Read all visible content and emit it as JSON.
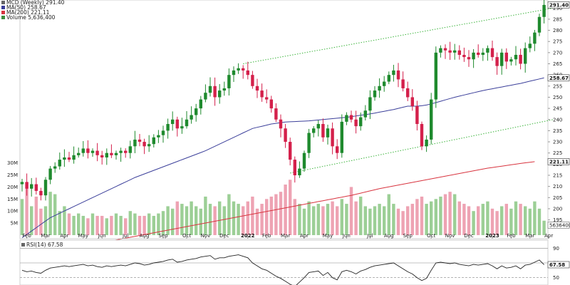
{
  "chart_data": {
    "type": "candlestick",
    "legend": {
      "title": "MCD (Weekly) 291.40",
      "ma50": "MA(50) 258.67",
      "ma200": "MA(200) 221.11",
      "volume": "Volume 5,636,400"
    },
    "price_axis": {
      "range": [
        192,
        292
      ],
      "ticks": [
        "195",
        "200",
        "205",
        "210",
        "215",
        "220",
        "225",
        "230",
        "235",
        "240",
        "245",
        "250",
        "255",
        "260",
        "265",
        "270",
        "275",
        "280",
        "285",
        "290"
      ],
      "last_price_label": "291.40",
      "ma50_label": "258.67",
      "ma200_label": "221.11",
      "volume_label": "5636400"
    },
    "volume_axis": {
      "range_millions": [
        0,
        32
      ],
      "ticks": [
        "5M",
        "10M",
        "15M",
        "20M",
        "25M",
        "30M"
      ]
    },
    "x_axis": {
      "labels": [
        {
          "text": "Feb",
          "week": 1
        },
        {
          "text": "Mar",
          "week": 5
        },
        {
          "text": "Apr",
          "week": 9
        },
        {
          "text": "May",
          "week": 13
        },
        {
          "text": "Jun",
          "week": 17
        },
        {
          "text": "Jul",
          "week": 22
        },
        {
          "text": "Aug",
          "week": 26
        },
        {
          "text": "Sep",
          "week": 30
        },
        {
          "text": "Oct",
          "week": 35
        },
        {
          "text": "Nov",
          "week": 39
        },
        {
          "text": "Dec",
          "week": 43
        },
        {
          "text": "2022",
          "week": 48,
          "bold": true
        },
        {
          "text": "Feb",
          "week": 52
        },
        {
          "text": "Mar",
          "week": 56
        },
        {
          "text": "Apr",
          "week": 60
        },
        {
          "text": "May",
          "week": 65
        },
        {
          "text": "Jun",
          "week": 69
        },
        {
          "text": "Jul",
          "week": 74
        },
        {
          "text": "Aug",
          "week": 78
        },
        {
          "text": "Sep",
          "week": 82
        },
        {
          "text": "Oct",
          "week": 87
        },
        {
          "text": "Nov",
          "week": 91
        },
        {
          "text": "Dec",
          "week": 95
        },
        {
          "text": "2023",
          "week": 100,
          "bold": true
        },
        {
          "text": "Feb",
          "week": 104
        },
        {
          "text": "Mar",
          "week": 108
        },
        {
          "text": "Apr",
          "week": 112
        }
      ]
    },
    "close": [
      212,
      209,
      211,
      208,
      206,
      213,
      218,
      219,
      222,
      223,
      222,
      224,
      225,
      227,
      225,
      226,
      224,
      223,
      225,
      224,
      225,
      226,
      225,
      228,
      231,
      230,
      228,
      229,
      232,
      233,
      235,
      238,
      240,
      236,
      237,
      240,
      242,
      245,
      249,
      252,
      255,
      250,
      253,
      254,
      260,
      262,
      263,
      262,
      260,
      255,
      253,
      250,
      249,
      245,
      240,
      236,
      230,
      222,
      215,
      218,
      225,
      234,
      236,
      238,
      232,
      236,
      228,
      225,
      239,
      242,
      240,
      237,
      241,
      244,
      250,
      253,
      255,
      257,
      260,
      262,
      258,
      254,
      250,
      246,
      238,
      228,
      231,
      249,
      270,
      272,
      271,
      270,
      271,
      269,
      268,
      267,
      270,
      269,
      270,
      272,
      268,
      264,
      270,
      266,
      267,
      269,
      265,
      272,
      274,
      279,
      286,
      291.4
    ],
    "ma50": [
      187,
      188.5,
      190,
      191.5,
      193,
      194.5,
      196,
      197,
      198,
      199,
      200,
      201,
      202,
      203,
      204,
      205,
      206,
      207,
      208,
      209,
      210,
      211,
      212,
      213,
      214,
      214.8,
      215.6,
      216.4,
      217.2,
      218,
      218.8,
      219.6,
      220.4,
      221.2,
      222,
      222.8,
      223.6,
      224.4,
      225.2,
      226,
      227,
      228,
      229,
      230,
      231,
      232,
      233,
      234,
      235,
      236,
      236.5,
      237,
      237.5,
      238,
      238.3,
      238.6,
      238.9,
      239,
      239.1,
      239.2,
      239.3,
      239.4,
      239.6,
      239.8,
      240,
      240.2,
      240.4,
      240.6,
      240.8,
      241,
      241.3,
      241.6,
      241.9,
      242.2,
      242.5,
      242.9,
      243.3,
      243.7,
      244.1,
      244.5,
      245,
      245.5,
      246,
      246,
      246,
      246.2,
      246.5,
      247,
      247.6,
      248.2,
      248.8,
      249.4,
      250,
      250.5,
      251,
      251.5,
      252,
      252.5,
      253,
      253.4,
      253.8,
      254.2,
      254.6,
      255,
      255.4,
      255.8,
      256.2,
      256.7,
      257.2,
      257.7,
      258.2,
      258.67
    ],
    "ma200": [
      178,
      178.4,
      178.8,
      179.2,
      179.6,
      180,
      180.4,
      180.8,
      181.2,
      181.6,
      182,
      182.4,
      182.8,
      183.2,
      183.6,
      184,
      184.4,
      184.8,
      185.2,
      185.6,
      186,
      186.4,
      186.8,
      187.2,
      187.6,
      188,
      188.4,
      188.8,
      189.2,
      189.6,
      190,
      190.4,
      190.8,
      191.2,
      191.6,
      192,
      192.4,
      192.8,
      193.2,
      193.6,
      194,
      194.4,
      194.8,
      195.2,
      195.6,
      196,
      196.4,
      196.8,
      197.2,
      197.6,
      198,
      198.4,
      198.8,
      199.2,
      199.6,
      200,
      200.4,
      200.8,
      201.2,
      201.6,
      202,
      202.4,
      202.8,
      203.2,
      203.6,
      204,
      204.4,
      204.8,
      205.2,
      205.6,
      206,
      206.5,
      207,
      207.5,
      208,
      208.5,
      209,
      209.4,
      209.8,
      210.2,
      210.6,
      211,
      211.4,
      211.8,
      212.2,
      212.6,
      213,
      213.4,
      213.8,
      214.2,
      214.6,
      215,
      215.4,
      215.8,
      216.2,
      216.6,
      217,
      217.4,
      217.8,
      218.2,
      218.5,
      218.8,
      219.1,
      219.4,
      219.7,
      220,
      220.3,
      220.6,
      220.85,
      221.11
    ],
    "volume_millions": [
      15,
      22,
      12,
      16,
      11,
      12,
      18,
      17,
      10,
      12,
      9,
      8,
      9,
      8,
      7,
      9,
      8,
      8,
      7,
      8,
      9,
      8,
      7,
      10,
      9,
      8,
      8,
      9,
      8,
      9,
      10,
      12,
      11,
      14,
      13,
      12,
      14,
      12,
      11,
      16,
      13,
      12,
      14,
      12,
      17,
      14,
      13,
      12,
      14,
      16,
      11,
      13,
      15,
      16,
      17,
      18,
      21,
      23,
      15,
      13,
      11,
      14,
      12,
      13,
      12,
      13,
      14,
      12,
      15,
      13,
      20,
      14,
      16,
      12,
      11,
      12,
      13,
      12,
      17,
      13,
      11,
      10,
      12,
      13,
      15,
      16,
      13,
      14,
      15,
      16,
      17,
      18,
      17,
      14,
      13,
      12,
      10,
      12,
      13,
      14,
      11,
      10,
      12,
      13,
      11,
      14,
      13,
      12,
      11,
      14,
      11,
      6
    ],
    "rsi": {
      "label": "RSI(14) 67.58",
      "value": "67.58",
      "ticks": [
        "90",
        "70",
        "50"
      ],
      "range": [
        40,
        100
      ],
      "values": [
        60,
        58,
        59,
        57,
        56,
        60,
        63,
        64,
        65,
        66,
        65,
        66,
        67,
        68,
        66,
        67,
        65,
        64,
        66,
        65,
        66,
        67,
        66,
        68,
        70,
        69,
        67,
        68,
        70,
        71,
        72,
        74,
        75,
        71,
        72,
        74,
        75,
        76,
        78,
        79,
        80,
        75,
        77,
        77,
        79,
        80,
        81,
        79,
        77,
        70,
        66,
        62,
        60,
        56,
        52,
        49,
        45,
        41,
        38,
        44,
        50,
        57,
        58,
        59,
        53,
        57,
        50,
        47,
        58,
        60,
        58,
        55,
        59,
        61,
        64,
        66,
        67,
        68,
        69,
        70,
        66,
        62,
        58,
        55,
        50,
        46,
        49,
        60,
        70,
        71,
        70,
        69,
        70,
        68,
        67,
        66,
        68,
        67,
        68,
        69,
        66,
        62,
        66,
        63,
        64,
        66,
        62,
        67,
        68,
        71,
        74,
        67.58
      ]
    },
    "channel": {
      "upper": {
        "from": {
          "week": 47,
          "price": 265
        },
        "to": {
          "week": 113,
          "price": 290
        }
      },
      "lower": {
        "from": {
          "week": 57,
          "price": 216
        },
        "to": {
          "week": 113,
          "price": 240
        }
      }
    },
    "colors": {
      "up_body": "#1f8a2e",
      "down_body": "#d4204b",
      "up_volume": "#9ccf96",
      "down_volume": "#eea3b3",
      "ma50": "#3b3f9a",
      "ma200": "#d8343f",
      "channel": "#3cb43c",
      "rsi": "#222222"
    }
  }
}
